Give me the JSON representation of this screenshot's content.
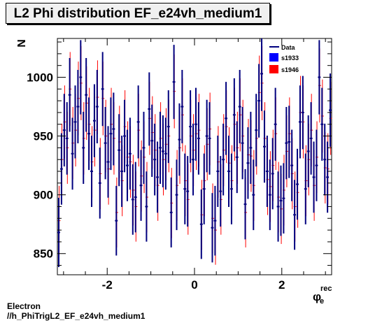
{
  "header": {
    "title": "L2 Phi distribution EF_e24vh_medium1"
  },
  "footer": {
    "line1": "Electron",
    "line2": "//h_PhiTrigL2_EF_e24vh_medium1"
  },
  "colors": {
    "data": "#00007f",
    "s1933": "#0000ff",
    "s1946": "#ff0000"
  },
  "chart_data": {
    "type": "scatter",
    "title": "L2 Phi distribution EF_e24vh_medium1",
    "xlabel": "φ_e^rec",
    "ylabel": "N",
    "xlim": [
      -3.1416,
      3.1416
    ],
    "ylim": [
      832,
      1033
    ],
    "xticks": [
      -2,
      0,
      2
    ],
    "yticks": [
      850,
      900,
      950,
      1000
    ],
    "xtick_labels": [
      "-2",
      "0",
      "2"
    ],
    "ytick_labels": [
      "850",
      "900",
      "950",
      "1000"
    ],
    "legend_position": "top-right",
    "series": [
      {
        "name": "Data",
        "style": "errorbar",
        "values": [
          868,
          922,
          955,
          948,
          985,
          935,
          962,
          975,
          1000,
          940,
          985,
          952,
          920,
          963,
          975,
          910,
          990,
          944,
          928,
          952,
          956,
          878,
          938,
          920,
          950,
          925,
          935,
          896,
          898,
          962,
          908,
          940,
          890,
          973,
          946,
          930,
          915,
          940,
          937,
          935,
          958,
          885,
          996,
          900,
          947,
          975,
          905,
          903,
          958,
          930,
          960,
          948,
          875,
          905,
          950,
          948,
          872,
          878,
          920,
          903,
          930,
          965,
          920,
          905,
          968,
          932,
          975,
          944,
          892,
          927,
          940,
          900,
          955,
          980,
          1003,
          941,
          920,
          900,
          918,
          960,
          890,
          895,
          897,
          944,
          945,
          925,
          883,
          909,
          962,
          970,
          905,
          937,
          948,
          915,
          925,
          1000,
          960,
          930,
          915,
          972
        ]
      },
      {
        "name": "s1933",
        "style": "marker",
        "values": []
      },
      {
        "name": "s1946",
        "style": "errorbar",
        "values": [
          878,
          930,
          962,
          940,
          990,
          944,
          955,
          982,
          995,
          948,
          978,
          960,
          928,
          955,
          983,
          918,
          982,
          950,
          922,
          960,
          948,
          885,
          945,
          912,
          958,
          932,
          928,
          904,
          890,
          955,
          916,
          932,
          898,
          965,
          953,
          938,
          908,
          948,
          930,
          943,
          950,
          893,
          988,
          908,
          940,
          968,
          912,
          896,
          950,
          938,
          952,
          955,
          883,
          912,
          943,
          956,
          880,
          870,
          928,
          896,
          938,
          958,
          927,
          912,
          960,
          940,
          968,
          950,
          885,
          934,
          933,
          908,
          948,
          987,
          995,
          948,
          913,
          907,
          925,
          952,
          898,
          888,
          904,
          937,
          952,
          918,
          890,
          902,
          970,
          962,
          912,
          930,
          955,
          908,
          932,
          993,
          967,
          923,
          922,
          965
        ]
      }
    ]
  }
}
